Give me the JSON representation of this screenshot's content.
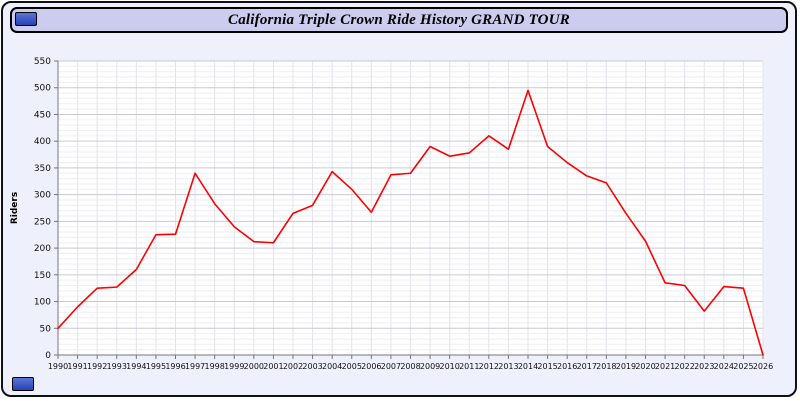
{
  "header": {
    "title": "California Triple Crown Ride History GRAND TOUR",
    "bg_color": "#ccccee"
  },
  "nav": {
    "top_button": "nav-button",
    "bottom_button": "nav-button"
  },
  "colors": {
    "line": "#ff0000",
    "page_bg": "#eef0fc",
    "button_blue": "#2743b2",
    "plot_bg": "#ffffff",
    "grid_major": "#c9c9d6",
    "grid_minor": "#ededf5",
    "grid_vertical": "#e3e3ee",
    "axis": "#777777"
  },
  "chart_data": {
    "type": "line",
    "title": "California Triple Crown Ride History GRAND TOUR",
    "xlabel": "",
    "ylabel": "Riders",
    "ylim": [
      0,
      550
    ],
    "ytick_step": 50,
    "ytick_minor_step": 10,
    "grid": true,
    "legend": false,
    "line_color": "#ff0000",
    "x": [
      1990,
      1991,
      1992,
      1993,
      1994,
      1995,
      1996,
      1997,
      1998,
      1999,
      2000,
      2001,
      2002,
      2003,
      2004,
      2005,
      2006,
      2007,
      2008,
      2009,
      2010,
      2011,
      2012,
      2013,
      2014,
      2015,
      2016,
      2017,
      2018,
      2019,
      2020,
      2021,
      2022,
      2023,
      2024,
      2025,
      2026
    ],
    "values": [
      50,
      90,
      125,
      127,
      160,
      225,
      226,
      340,
      283,
      240,
      212,
      210,
      265,
      280,
      343,
      310,
      267,
      337,
      340,
      390,
      372,
      378,
      410,
      385,
      495,
      390,
      360,
      335,
      322,
      265,
      213,
      135,
      130,
      82,
      128,
      125,
      0
    ]
  }
}
